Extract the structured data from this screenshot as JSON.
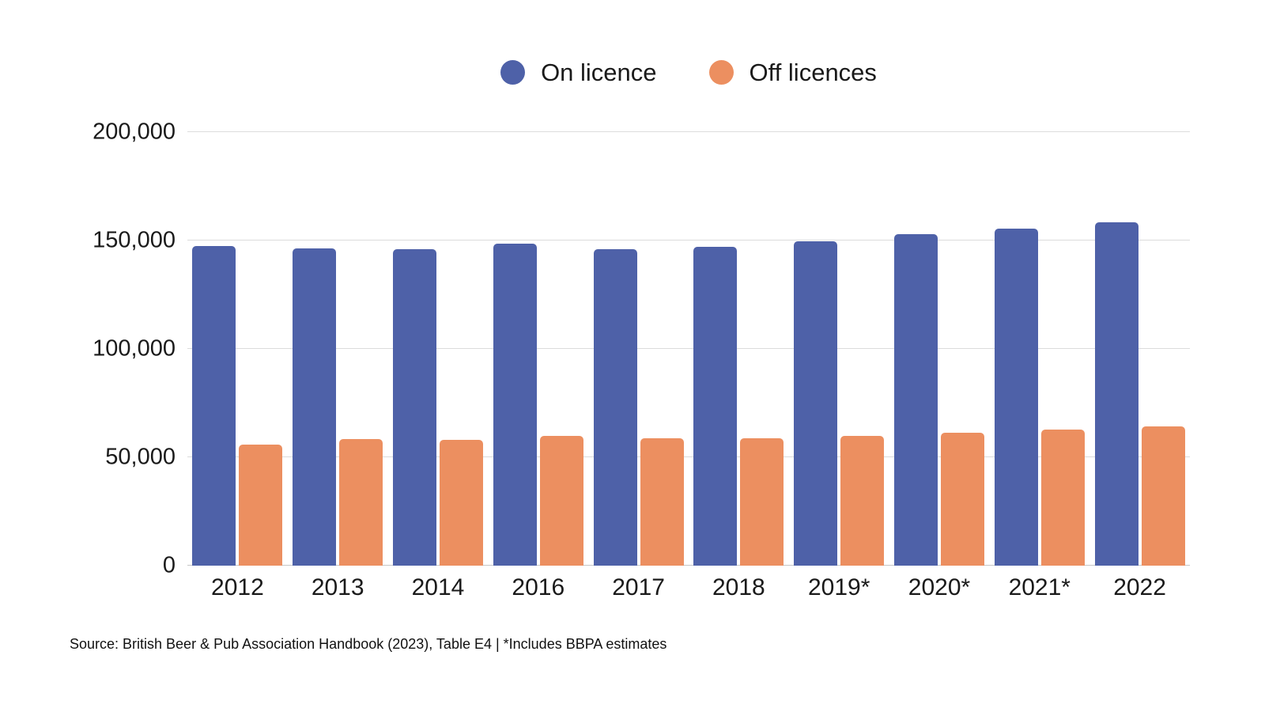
{
  "legend": {
    "items": [
      {
        "label": "On licence",
        "color": "#4E61A8"
      },
      {
        "label": "Off licences",
        "color": "#EC8F60"
      }
    ]
  },
  "source": "Source: British Beer & Pub Association Handbook (2023), Table E4 | *Includes BBPA estimates",
  "chart_data": {
    "type": "bar",
    "title": "",
    "xlabel": "",
    "ylabel": "",
    "categories": [
      "2012",
      "2013",
      "2014",
      "2016",
      "2017",
      "2018",
      "2019*",
      "2020*",
      "2021*",
      "2022"
    ],
    "series": [
      {
        "name": "On licence",
        "color": "#4E61A8",
        "values": [
          147300,
          146400,
          145900,
          148400,
          145900,
          147200,
          149700,
          152800,
          155500,
          158400
        ]
      },
      {
        "name": "Off licences",
        "color": "#EC8F60",
        "values": [
          55900,
          58500,
          58100,
          59800,
          58600,
          58600,
          60000,
          61400,
          62600,
          64400
        ]
      }
    ],
    "ylim": [
      0,
      200000
    ],
    "yticks": [
      0,
      50000,
      100000,
      150000,
      200000
    ],
    "grid": true,
    "legend_position": "top"
  }
}
